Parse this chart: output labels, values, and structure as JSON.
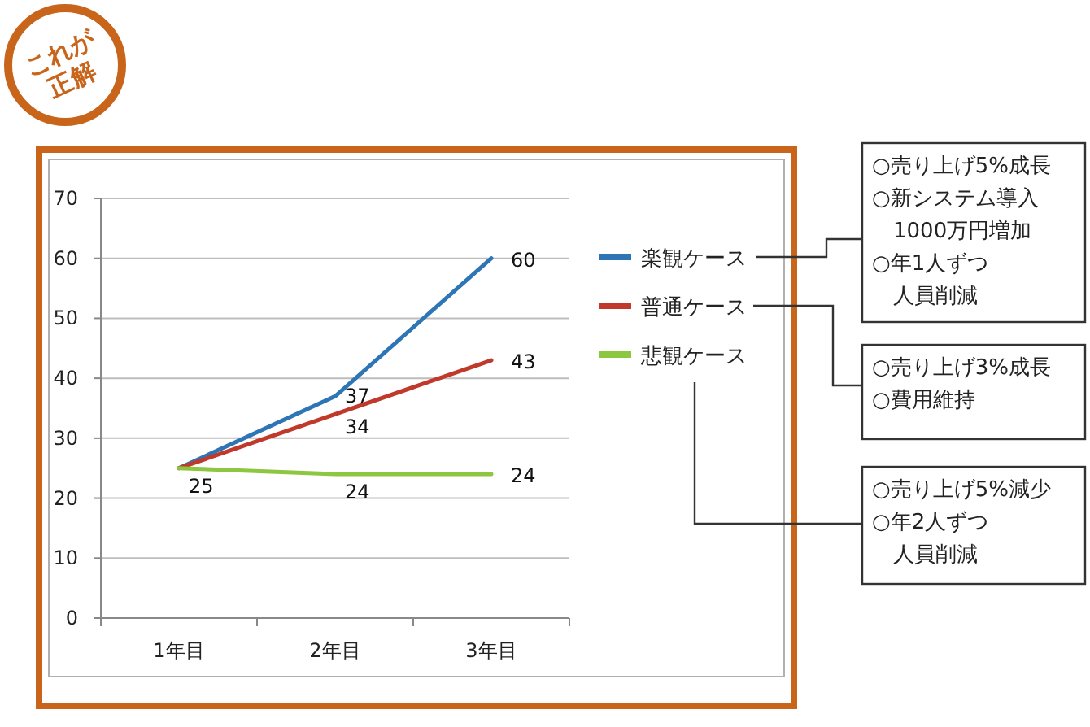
{
  "chart_data": {
    "type": "line",
    "categories": [
      "1年目",
      "2年目",
      "3年目"
    ],
    "ylim": [
      0,
      70
    ],
    "yticks": [
      0,
      10,
      20,
      30,
      40,
      50,
      60,
      70
    ],
    "grid": "y",
    "legend": "right",
    "series": [
      {
        "name": "楽観ケース",
        "color": "#2e75b6",
        "values": [
          25,
          37,
          60
        ],
        "value_labels": [
          null,
          "37",
          "60"
        ]
      },
      {
        "name": "普通ケース",
        "color": "#c0392b",
        "values": [
          25,
          34,
          43
        ],
        "value_labels": [
          null,
          "34",
          "43"
        ]
      },
      {
        "name": "悲観ケース",
        "color": "#8dc63f",
        "values": [
          25,
          24,
          24
        ],
        "value_labels": [
          "25",
          "24",
          "24"
        ]
      }
    ],
    "annotations": [
      "これが\n正解",
      "○売り上げ5%成長",
      "○新システム導入",
      "1000万円増加",
      "○年1人ずつ",
      "人員削減",
      "○売り上げ3%成長",
      "○費用維持",
      "○売り上げ5%減少",
      "○年2人ずつ",
      "人員削減"
    ]
  }
}
